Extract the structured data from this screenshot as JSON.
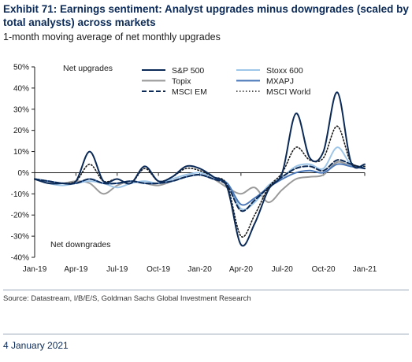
{
  "header": {
    "title": "Exhibit 71: Earnings sentiment: Analyst upgrades minus downgrades (scaled by total analysts) across markets",
    "subtitle": "1-month moving average of net monthly upgrades"
  },
  "footer": {
    "source": "Source: Datastream, I/B/E/S, Goldman Sachs Global Investment Research",
    "date": "4 January 2021"
  },
  "chart_data": {
    "type": "line",
    "title": "",
    "xlabel": "",
    "ylabel": "",
    "annotations": {
      "top": "Net upgrades",
      "bottom": "Net downgrades"
    },
    "ylim": [
      -40,
      50
    ],
    "y_ticks": [
      -40,
      -30,
      -20,
      -10,
      0,
      10,
      20,
      30,
      40,
      50
    ],
    "y_tick_labels": [
      "-40%",
      "-30%",
      "-20%",
      "-10%",
      "0%",
      "10%",
      "20%",
      "30%",
      "40%",
      "50%"
    ],
    "x_ticks": [
      "Jan-19",
      "Apr-19",
      "Jul-19",
      "Oct-19",
      "Jan-20",
      "Apr-20",
      "Jul-20",
      "Oct-20",
      "Jan-21"
    ],
    "legend_position": "top-right",
    "grid": false,
    "x": [
      "Jan-19",
      "Feb-19",
      "Mar-19",
      "Apr-19",
      "May-19",
      "Jun-19",
      "Jul-19",
      "Aug-19",
      "Sep-19",
      "Oct-19",
      "Nov-19",
      "Dec-19",
      "Jan-20",
      "Feb-20",
      "Mar-20",
      "Apr-20",
      "May-20",
      "Jun-20",
      "Jul-20",
      "Aug-20",
      "Sep-20",
      "Oct-20",
      "Nov-20",
      "Dec-20",
      "Jan-21"
    ],
    "series": [
      {
        "name": "S&P 500",
        "color": "#0b2a57",
        "dash": "solid",
        "values": [
          -3,
          -5,
          -5,
          -4,
          10,
          -4,
          -3,
          -5,
          3,
          -4,
          -2,
          3,
          2,
          -2,
          -7,
          -34,
          -24,
          -8,
          0,
          28,
          7,
          10,
          38,
          5,
          4
        ]
      },
      {
        "name": "Stoxx 600",
        "color": "#9ec6e8",
        "dash": "solid",
        "values": [
          -3,
          -5,
          -6,
          -5,
          -4,
          -5,
          -7,
          -5,
          -4,
          -5,
          -3,
          -1,
          0,
          -2,
          -5,
          -17,
          -14,
          -6,
          -2,
          3,
          4,
          2,
          12,
          4,
          3
        ]
      },
      {
        "name": "Topix",
        "color": "#9a9a9a",
        "dash": "solid",
        "values": [
          -3,
          -4,
          -5,
          -4,
          -5,
          -10,
          -6,
          -4,
          -5,
          -6,
          -4,
          -2,
          -1,
          -3,
          -7,
          -10,
          -7,
          -14,
          -8,
          -3,
          -2,
          -1,
          5,
          3,
          2
        ]
      },
      {
        "name": "MXAPJ",
        "color": "#4b78b8",
        "dash": "solid",
        "values": [
          -3,
          -4,
          -5,
          -5,
          -3,
          -5,
          -5,
          -4,
          -5,
          -5,
          -4,
          -2,
          -1,
          -3,
          -5,
          -15,
          -12,
          -7,
          -3,
          0,
          1,
          0,
          4,
          3,
          2
        ]
      },
      {
        "name": "MSCI EM",
        "color": "#0b2a57",
        "dash": "dashed",
        "values": [
          -3,
          -4,
          -5,
          -5,
          -3,
          -5,
          -5,
          -4,
          -5,
          -5,
          -4,
          -2,
          -1,
          -3,
          -6,
          -18,
          -13,
          -7,
          -2,
          2,
          3,
          1,
          6,
          4,
          2
        ]
      },
      {
        "name": "MSCI World",
        "color": "#1a1a1a",
        "dash": "dotted",
        "values": [
          -3,
          -5,
          -5,
          -4,
          4,
          -4,
          -3,
          -5,
          2,
          -4,
          -2,
          2,
          1,
          -2,
          -6,
          -30,
          -20,
          -7,
          0,
          12,
          6,
          7,
          22,
          5,
          3
        ]
      }
    ]
  }
}
